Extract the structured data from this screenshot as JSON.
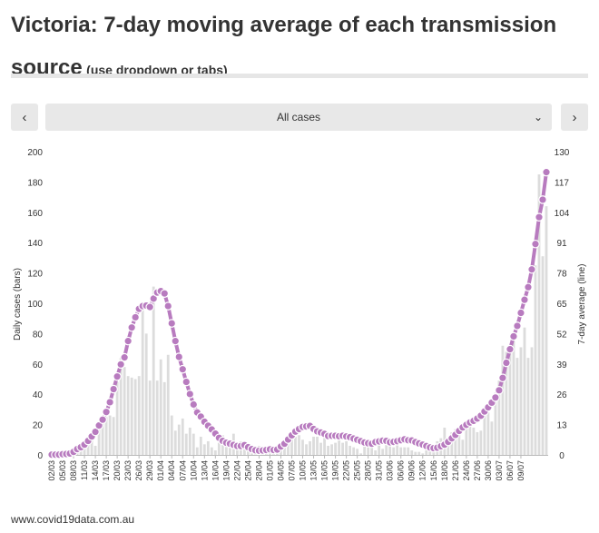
{
  "header": {
    "title": "Victoria: 7-day moving average of each transmission source",
    "hint": "(use dropdown or tabs)"
  },
  "controls": {
    "prev_icon": "chevron-left-icon",
    "next_icon": "chevron-right-icon",
    "select_icon": "chevron-down-icon",
    "selected": "All cases"
  },
  "footer": {
    "credit": "www.covid19data.com.au"
  },
  "colors": {
    "bar": "#dcdcdc",
    "line": "#b87bbf",
    "marker": "#b87bbf",
    "marker_stroke": "#ffffff"
  },
  "chart_data": {
    "type": "bar",
    "start_date": "02/03",
    "x_tick_labels": [
      "02/03",
      "05/03",
      "08/03",
      "11/03",
      "14/03",
      "17/03",
      "20/03",
      "23/03",
      "26/03",
      "29/03",
      "01/04",
      "04/04",
      "07/04",
      "10/04",
      "13/04",
      "16/04",
      "19/04",
      "22/04",
      "25/04",
      "28/04",
      "01/05",
      "04/05",
      "07/05",
      "10/05",
      "13/05",
      "16/05",
      "19/05",
      "22/05",
      "25/05",
      "28/05",
      "31/05",
      "03/06",
      "06/06",
      "09/06",
      "12/06",
      "15/06",
      "18/06",
      "21/06",
      "24/06",
      "27/06",
      "30/06",
      "03/07",
      "06/07",
      "09/07"
    ],
    "ylabel_left": "Daily cases (bars)",
    "ylabel_right": "7-day average (line)",
    "ylim_left": [
      0,
      200
    ],
    "yticks_left": [
      0,
      20,
      40,
      60,
      80,
      100,
      120,
      140,
      160,
      180,
      200
    ],
    "ylim_right": [
      0,
      130
    ],
    "yticks_right": [
      0,
      13,
      26,
      39,
      52,
      65,
      78,
      91,
      104,
      117,
      130
    ],
    "grid": false,
    "series": [
      {
        "type": "bar",
        "axis": "left",
        "values": [
          0,
          0,
          1,
          0,
          0,
          2,
          3,
          5,
          4,
          8,
          10,
          12,
          6,
          18,
          22,
          25,
          26,
          25,
          48,
          64,
          58,
          52,
          51,
          50,
          52,
          98,
          80,
          49,
          111,
          49,
          63,
          48,
          66,
          26,
          16,
          20,
          24,
          14,
          18,
          14,
          5,
          12,
          7,
          9,
          5,
          3,
          8,
          13,
          6,
          7,
          14,
          8,
          9,
          5,
          4,
          1,
          2,
          6,
          4,
          4,
          3,
          3,
          4,
          8,
          10,
          13,
          11,
          12,
          13,
          10,
          7,
          9,
          12,
          12,
          8,
          13,
          6,
          7,
          8,
          10,
          8,
          9,
          6,
          5,
          4,
          1,
          6,
          8,
          9,
          3,
          9,
          4,
          10,
          9,
          5,
          7,
          5,
          5,
          5,
          3,
          2,
          2,
          1,
          3,
          6,
          7,
          9,
          11,
          18,
          8,
          15,
          17,
          14,
          10,
          19,
          24,
          18,
          15,
          16,
          30,
          28,
          22,
          41,
          49,
          72,
          68,
          68,
          75,
          64,
          71,
          84,
          64,
          71,
          125,
          185,
          131,
          164
        ]
      },
      {
        "type": "line",
        "axis": "right",
        "values": [
          0.1,
          0.1,
          0.1,
          0.3,
          0.4,
          0.6,
          1.3,
          2.5,
          3.3,
          4.4,
          6,
          7.9,
          9.9,
          12.6,
          15.1,
          18.4,
          22.6,
          28.2,
          33.6,
          38.8,
          41.8,
          48.8,
          54.6,
          59,
          62.6,
          63.8,
          64,
          63.4,
          67,
          69.6,
          70.2,
          69.2,
          63.8,
          56.4,
          48.8,
          42,
          36.7,
          31.3,
          26.1,
          21.6,
          18.2,
          16.4,
          14.2,
          12.5,
          10.9,
          9.1,
          7.3,
          6,
          5.2,
          4.8,
          4.3,
          3.8,
          3.8,
          4.2,
          3.3,
          2.5,
          2,
          1.8,
          1.9,
          2.1,
          2.4,
          2.1,
          2.3,
          3.6,
          4.8,
          6.6,
          8.4,
          10,
          11.1,
          12,
          12.2,
          12.4,
          11.1,
          10.1,
          9.6,
          9,
          8.1,
          8.2,
          8.2,
          8,
          8.2,
          7.9,
          7.6,
          7,
          6.5,
          5.9,
          5.3,
          5,
          4.8,
          5.5,
          5.8,
          6.1,
          6,
          5.4,
          5.6,
          5.9,
          6.3,
          6.7,
          6.3,
          6.2,
          5.5,
          4.9,
          4.4,
          3.8,
          3.2,
          2.9,
          3.1,
          3.7,
          4.4,
          5.6,
          7.1,
          8.6,
          10.3,
          11.8,
          12.9,
          13.9,
          14.6,
          15.6,
          16.8,
          18.6,
          20.4,
          22.4,
          24.6,
          27.7,
          33,
          39.5,
          45.3,
          50.8,
          55.3,
          60.9,
          66.5,
          71.9,
          79.5,
          90.4,
          101.9,
          109.4,
          121.2
        ]
      }
    ]
  }
}
